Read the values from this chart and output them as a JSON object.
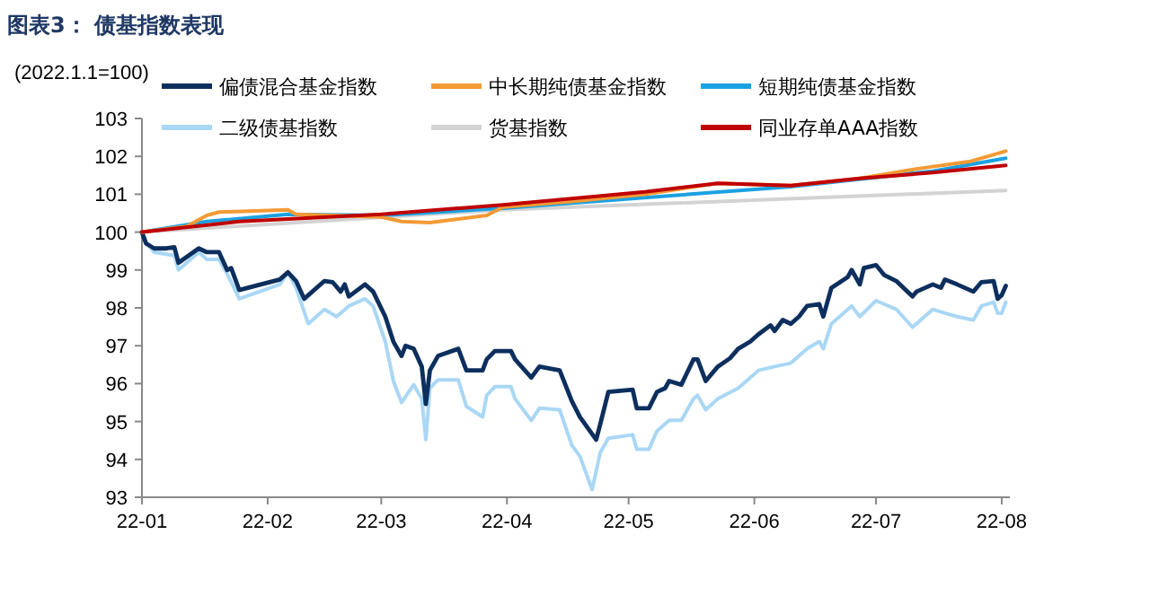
{
  "chart_data": {
    "type": "line",
    "title": "图表3： 债基指数表现",
    "ylabel": "(2022.1.1=100)",
    "xlim": [
      "2022-01-01",
      "2022-08-03"
    ],
    "xticks": [
      {
        "value": "2022-01-01",
        "label": "22-01"
      },
      {
        "value": "2022-02-01",
        "label": "22-02"
      },
      {
        "value": "2022-03-01",
        "label": "22-03"
      },
      {
        "value": "2022-04-01",
        "label": "22-04"
      },
      {
        "value": "2022-05-01",
        "label": "22-05"
      },
      {
        "value": "2022-06-01",
        "label": "22-06"
      },
      {
        "value": "2022-07-01",
        "label": "22-07"
      },
      {
        "value": "2022-08-01",
        "label": "22-08"
      }
    ],
    "ylim": [
      93,
      103
    ],
    "yticks": [
      93,
      94,
      95,
      96,
      97,
      98,
      99,
      100,
      101,
      102,
      103
    ],
    "grid": false,
    "legend": "top",
    "marker": "none",
    "line_style": "solid",
    "series": [
      {
        "name": "偏债混合基金指数",
        "color": "#0d2f5e",
        "x": [
          "2022-01-01",
          "2022-01-02",
          "2022-01-04",
          "2022-01-07",
          "2022-01-09",
          "2022-01-10",
          "2022-01-15",
          "2022-01-17",
          "2022-01-20",
          "2022-01-22",
          "2022-01-23",
          "2022-01-25",
          "2022-02-04",
          "2022-02-06",
          "2022-02-08",
          "2022-02-10",
          "2022-02-15",
          "2022-02-17",
          "2022-02-19",
          "2022-02-20",
          "2022-02-21",
          "2022-02-25",
          "2022-02-27",
          "2022-03-02",
          "2022-03-04",
          "2022-03-06",
          "2022-03-07",
          "2022-03-09",
          "2022-03-11",
          "2022-03-12",
          "2022-03-13",
          "2022-03-15",
          "2022-03-20",
          "2022-03-22",
          "2022-03-26",
          "2022-03-27",
          "2022-03-29",
          "2022-04-02",
          "2022-04-03",
          "2022-04-07",
          "2022-04-09",
          "2022-04-11",
          "2022-04-14",
          "2022-04-17",
          "2022-04-19",
          "2022-04-23",
          "2022-04-24",
          "2022-04-26",
          "2022-05-02",
          "2022-05-03",
          "2022-05-06",
          "2022-05-08",
          "2022-05-10",
          "2022-05-11",
          "2022-05-14",
          "2022-05-17",
          "2022-05-18",
          "2022-05-20",
          "2022-05-23",
          "2022-05-26",
          "2022-05-28",
          "2022-05-31",
          "2022-06-02",
          "2022-06-05",
          "2022-06-06",
          "2022-06-08",
          "2022-06-10",
          "2022-06-12",
          "2022-06-14",
          "2022-06-17",
          "2022-06-18",
          "2022-06-20",
          "2022-06-24",
          "2022-06-25",
          "2022-06-27",
          "2022-06-28",
          "2022-07-01",
          "2022-07-03",
          "2022-07-06",
          "2022-07-10",
          "2022-07-11",
          "2022-07-15",
          "2022-07-17",
          "2022-07-18",
          "2022-07-21",
          "2022-07-25",
          "2022-07-27",
          "2022-07-30",
          "2022-07-31",
          "2022-08-01",
          "2022-08-02"
        ],
        "values": [
          100,
          99.7,
          99.57,
          99.57,
          99.6,
          99.19,
          99.57,
          99.47,
          99.47,
          99.0,
          99.05,
          98.47,
          98.75,
          98.94,
          98.71,
          98.24,
          98.71,
          98.68,
          98.43,
          98.62,
          98.3,
          98.62,
          98.43,
          97.77,
          97.11,
          96.73,
          97.0,
          96.92,
          96.45,
          95.46,
          96.35,
          96.73,
          96.92,
          96.35,
          96.35,
          96.64,
          96.86,
          96.86,
          96.64,
          96.16,
          96.45,
          96.41,
          96.35,
          95.54,
          95.12,
          94.52,
          94.93,
          95.78,
          95.84,
          95.35,
          95.35,
          95.78,
          95.88,
          96.07,
          95.97,
          96.64,
          96.64,
          96.07,
          96.45,
          96.67,
          96.92,
          97.11,
          97.3,
          97.54,
          97.39,
          97.68,
          97.58,
          97.77,
          98.05,
          98.1,
          97.77,
          98.53,
          98.81,
          99.0,
          98.62,
          99.05,
          99.13,
          98.87,
          98.71,
          98.3,
          98.43,
          98.62,
          98.53,
          98.75,
          98.62,
          98.43,
          98.68,
          98.71,
          98.24,
          98.34,
          98.58
        ]
      },
      {
        "name": "中长期纯债基金指数",
        "color": "#f39a35",
        "x": [
          "2022-01-01",
          "2022-01-12",
          "2022-01-17",
          "2022-01-20",
          "2022-02-06",
          "2022-02-08",
          "2022-03-01",
          "2022-03-06",
          "2022-03-13",
          "2022-03-27",
          "2022-03-31",
          "2022-04-18",
          "2022-05-05",
          "2022-05-23",
          "2022-06-10",
          "2022-06-27",
          "2022-07-11",
          "2022-07-24",
          "2022-08-02"
        ],
        "values": [
          100,
          100.15,
          100.44,
          100.53,
          100.59,
          100.47,
          100.4,
          100.28,
          100.25,
          100.44,
          100.66,
          100.82,
          101.0,
          101.29,
          101.23,
          101.42,
          101.67,
          101.86,
          102.14
        ]
      },
      {
        "name": "短期纯债基金指数",
        "color": "#1ba1e2",
        "x": [
          "2022-01-01",
          "2022-01-17",
          "2022-02-06",
          "2022-03-01",
          "2022-03-31",
          "2022-06-10",
          "2022-07-15",
          "2022-08-02"
        ],
        "values": [
          100,
          100.28,
          100.47,
          100.44,
          100.63,
          101.2,
          101.61,
          101.95
        ]
      },
      {
        "name": "二级债基指数",
        "color": "#a9d7f5",
        "x": [
          "2022-01-01",
          "2022-01-02",
          "2022-01-04",
          "2022-01-09",
          "2022-01-10",
          "2022-01-15",
          "2022-01-17",
          "2022-01-20",
          "2022-01-22",
          "2022-01-25",
          "2022-02-04",
          "2022-02-06",
          "2022-02-08",
          "2022-02-11",
          "2022-02-15",
          "2022-02-18",
          "2022-02-21",
          "2022-02-25",
          "2022-02-27",
          "2022-03-02",
          "2022-03-04",
          "2022-03-06",
          "2022-03-09",
          "2022-03-11",
          "2022-03-12",
          "2022-03-13",
          "2022-03-15",
          "2022-03-20",
          "2022-03-22",
          "2022-03-26",
          "2022-03-27",
          "2022-03-29",
          "2022-04-02",
          "2022-04-03",
          "2022-04-07",
          "2022-04-09",
          "2022-04-14",
          "2022-04-17",
          "2022-04-19",
          "2022-04-22",
          "2022-04-24",
          "2022-04-26",
          "2022-05-02",
          "2022-05-03",
          "2022-05-06",
          "2022-05-08",
          "2022-05-11",
          "2022-05-14",
          "2022-05-17",
          "2022-05-18",
          "2022-05-20",
          "2022-05-23",
          "2022-05-28",
          "2022-06-02",
          "2022-06-06",
          "2022-06-10",
          "2022-06-14",
          "2022-06-17",
          "2022-06-18",
          "2022-06-20",
          "2022-06-25",
          "2022-06-27",
          "2022-07-01",
          "2022-07-06",
          "2022-07-10",
          "2022-07-15",
          "2022-07-18",
          "2022-07-21",
          "2022-07-25",
          "2022-07-27",
          "2022-07-30",
          "2022-07-31",
          "2022-08-01",
          "2022-08-02"
        ],
        "values": [
          100,
          99.75,
          99.47,
          99.38,
          99.0,
          99.47,
          99.28,
          99.28,
          98.9,
          98.24,
          98.62,
          98.94,
          98.53,
          97.58,
          97.96,
          97.77,
          98.05,
          98.24,
          98.05,
          97.11,
          96.07,
          95.5,
          95.97,
          95.6,
          94.52,
          95.88,
          96.1,
          96.1,
          95.4,
          95.12,
          95.69,
          95.92,
          95.92,
          95.6,
          95.03,
          95.35,
          95.31,
          94.37,
          94.08,
          93.2,
          94.18,
          94.56,
          94.65,
          94.27,
          94.27,
          94.75,
          95.03,
          95.03,
          95.6,
          95.69,
          95.31,
          95.6,
          95.88,
          96.35,
          96.45,
          96.54,
          96.92,
          97.11,
          96.92,
          97.58,
          98.05,
          97.77,
          98.19,
          97.96,
          97.49,
          97.96,
          97.86,
          97.77,
          97.68,
          98.05,
          98.15,
          97.86,
          97.86,
          98.15
        ]
      },
      {
        "name": "货基指数",
        "color": "#d3d3d3",
        "x": [
          "2022-01-01",
          "2022-03-31",
          "2022-08-02"
        ],
        "values": [
          100,
          100.59,
          101.1
        ]
      },
      {
        "name": "同业存单AAA指数",
        "color": "#c00000",
        "x": [
          "2022-01-01",
          "2022-01-25",
          "2022-03-01",
          "2022-03-31",
          "2022-05-05",
          "2022-05-23",
          "2022-06-10",
          "2022-06-27",
          "2022-07-15",
          "2022-08-02"
        ],
        "values": [
          100,
          100.28,
          100.47,
          100.72,
          101.06,
          101.29,
          101.23,
          101.42,
          101.57,
          101.76
        ]
      }
    ]
  }
}
